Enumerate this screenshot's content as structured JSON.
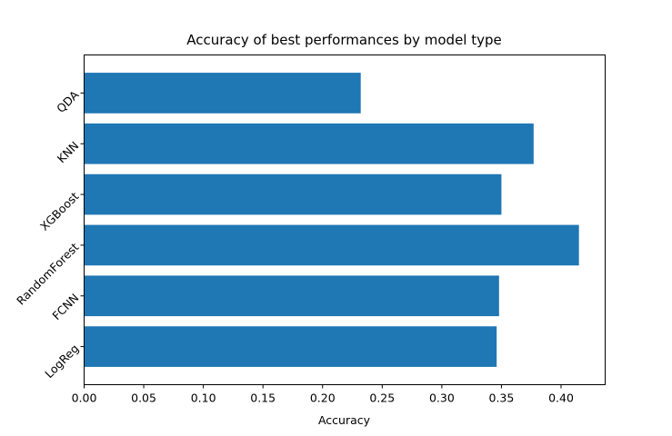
{
  "chart_data": {
    "type": "bar",
    "orientation": "horizontal",
    "title": "Accuracy of best performances by model type",
    "xlabel": "Accuracy",
    "ylabel": "",
    "categories": [
      "LogReg",
      "FCNN",
      "RandomForest",
      "XGBoost",
      "KNN",
      "QDA"
    ],
    "values": [
      0.346,
      0.348,
      0.415,
      0.35,
      0.377,
      0.232
    ],
    "xlim": [
      0,
      0.437
    ],
    "xticks": [
      0.0,
      0.05,
      0.1,
      0.15,
      0.2,
      0.25,
      0.3,
      0.35,
      0.4
    ],
    "xtick_labels": [
      "0.00",
      "0.05",
      "0.10",
      "0.15",
      "0.20",
      "0.25",
      "0.30",
      "0.35",
      "0.40"
    ],
    "bar_color": "#1f77b4",
    "grid": false,
    "legend": "none",
    "ytick_rotation_deg": 45
  }
}
